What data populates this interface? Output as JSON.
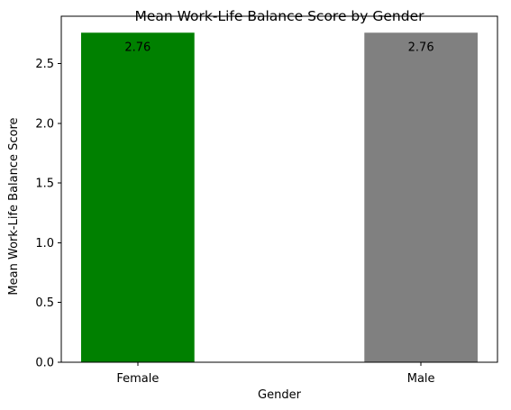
{
  "chart_data": {
    "type": "bar",
    "title": "Mean Work-Life Balance Score by Gender",
    "xlabel": "Gender",
    "ylabel": "Mean Work-Life Balance Score",
    "categories": [
      "Female",
      "Male"
    ],
    "values": [
      2.76,
      2.76
    ],
    "data_labels": [
      "2.76",
      "2.76"
    ],
    "bar_colors": [
      "#008000",
      "#808080"
    ],
    "ylim": [
      0,
      2.898
    ],
    "yticks": [
      0.0,
      0.5,
      1.0,
      1.5,
      2.0,
      2.5
    ],
    "ytick_labels": [
      "0.0",
      "0.5",
      "1.0",
      "1.5",
      "2.0",
      "2.5"
    ],
    "grid": false,
    "legend": "none"
  }
}
